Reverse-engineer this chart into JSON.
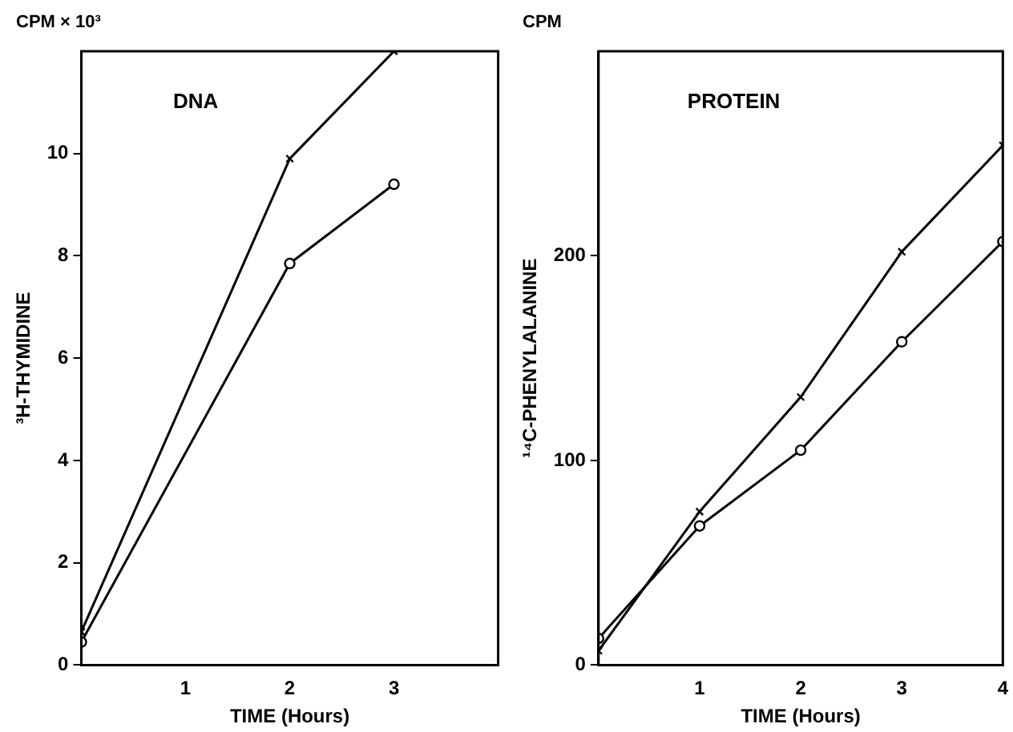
{
  "chart_data": [
    {
      "type": "line",
      "title": "DNA",
      "xlabel": "TIME (Hours)",
      "ylabel": "³H-THYMIDINE",
      "annotations": [
        "CPM × 10³"
      ],
      "series": [
        {
          "color": "#000000",
          "marker": "cross",
          "x": [
            0,
            2,
            3
          ],
          "values": [
            0.65,
            9.9,
            12
          ]
        },
        {
          "color": "#000000",
          "marker": "circle",
          "x": [
            0,
            2,
            3
          ],
          "values": [
            0.45,
            7.85,
            9.4
          ]
        }
      ],
      "xlim": [
        0,
        4
      ],
      "xticks": [
        {
          "value": 0,
          "label": null
        },
        1,
        2,
        3
      ],
      "ylim": [
        0,
        12
      ],
      "yticks": [
        0,
        2,
        4,
        6,
        8,
        10
      ],
      "grid": false,
      "legend": false,
      "line_style": "solid"
    },
    {
      "type": "line",
      "title": "PROTEIN",
      "xlabel": "TIME (Hours)",
      "ylabel": "¹⁴C-PHENYLALANINE",
      "annotations": [
        "CPM"
      ],
      "x": [
        0,
        1,
        2,
        3,
        4
      ],
      "series": [
        {
          "color": "#000000",
          "marker": "cross",
          "values": [
            7,
            75,
            131,
            202,
            254
          ]
        },
        {
          "color": "#000000",
          "marker": "circle",
          "values": [
            13,
            68,
            105,
            158,
            207
          ]
        }
      ],
      "xlim": [
        0,
        4
      ],
      "xticks": [
        {
          "value": 0,
          "label": null
        },
        1,
        2,
        3,
        4
      ],
      "ylim": [
        0,
        300
      ],
      "yticks": [
        0,
        100,
        200
      ],
      "grid": false,
      "legend": false,
      "line_style": "solid"
    }
  ]
}
